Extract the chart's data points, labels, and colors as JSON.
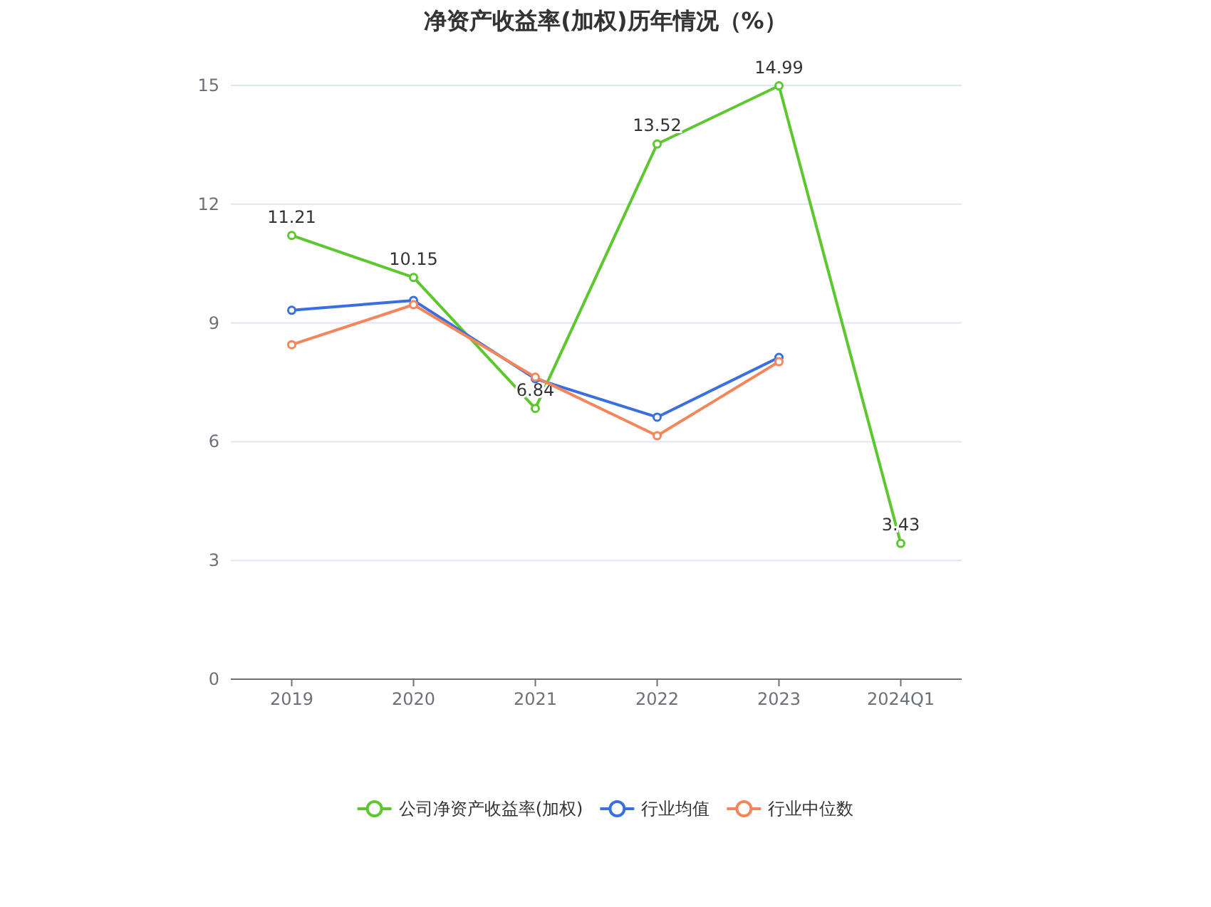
{
  "chart_data": {
    "type": "line",
    "title": "净资产收益率(加权)历年情况（%）",
    "categories": [
      "2019",
      "2020",
      "2021",
      "2022",
      "2023",
      "2024Q1"
    ],
    "series": [
      {
        "name": "公司净资产收益率(加权)",
        "color": "#5cc72f",
        "values": [
          11.21,
          10.15,
          6.84,
          13.52,
          14.99,
          3.43
        ],
        "value_labels": [
          "11.21",
          "10.15",
          "6.84",
          "13.52",
          "14.99",
          "3.43"
        ]
      },
      {
        "name": "行业均值",
        "color": "#3a6fe0",
        "values": [
          9.32,
          9.57,
          7.59,
          6.62,
          8.13,
          null
        ]
      },
      {
        "name": "行业中位数",
        "color": "#f5855a",
        "values": [
          8.45,
          9.46,
          7.63,
          6.15,
          8.02,
          null
        ]
      }
    ],
    "ylim": [
      0,
      15
    ],
    "yticks": [
      0,
      3,
      6,
      9,
      12,
      15
    ],
    "grid": "y",
    "legend": "bottom",
    "marker": "circle",
    "line_style": "solid"
  }
}
